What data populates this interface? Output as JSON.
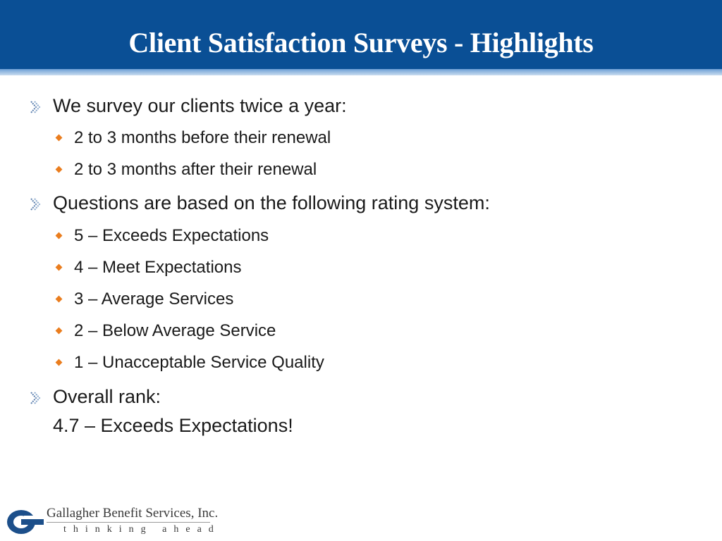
{
  "slide": {
    "title": "Client Satisfaction Surveys - Highlights"
  },
  "bullets": {
    "survey_intro": "We survey our clients twice a year:",
    "survey_times": [
      "2 to 3 months before their renewal",
      "2 to 3 months after their renewal"
    ],
    "rating_intro": "Questions are based on the following rating system:",
    "ratings": [
      "5 – Exceeds Expectations",
      "4 – Meet Expectations",
      "3 – Average Services",
      "2 – Below Average Service",
      "1 – Unacceptable Service Quality"
    ],
    "overall_label": "Overall rank:",
    "overall_value": "4.7 – Exceeds Expectations!"
  },
  "footer": {
    "company": "Gallagher Benefit Services, Inc.",
    "tagline": "thinking ahead"
  },
  "colors": {
    "header_blue": "#0a4f95",
    "bullet_orange": "#ea7d1e",
    "arrow_blue": "#5b7fae"
  }
}
